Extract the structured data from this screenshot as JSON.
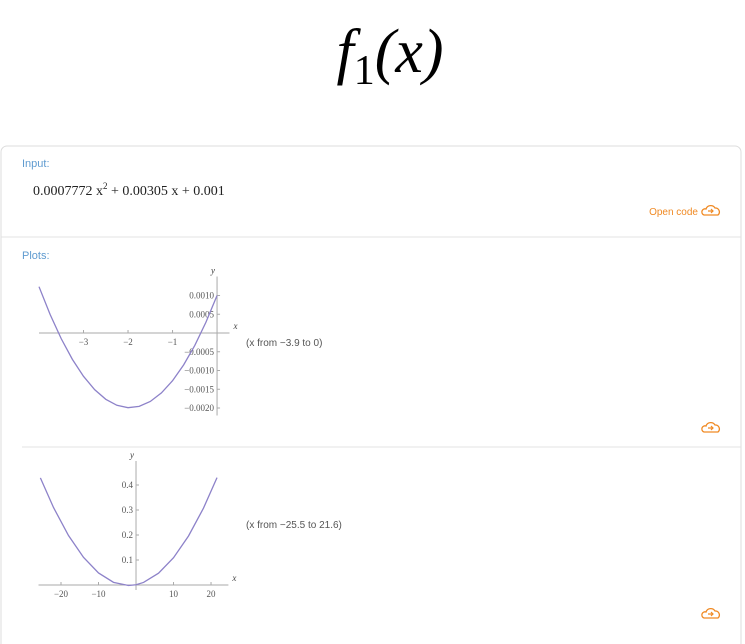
{
  "title": {
    "name": "f",
    "subscript": "1",
    "argument": "(x)"
  },
  "input": {
    "label": "Input:",
    "expression": {
      "quadratic_term": "0.0007772 x",
      "power": "2",
      "rest": " + 0.00305 x + 0.001"
    },
    "open_code": "Open code"
  },
  "plots": {
    "label": "Plots:",
    "items": [
      {
        "type": "line",
        "x_label": "x",
        "y_label": "y",
        "range_note": "(x from −3.9 to 0)",
        "color": "#8d82c9",
        "x": [
          -4,
          -3.75,
          -3.5,
          -3.25,
          -3,
          -2.75,
          -2.5,
          -2.25,
          -2,
          -1.75,
          -1.5,
          -1.25,
          -1,
          -0.75,
          -0.5,
          -0.25,
          0
        ],
        "values": [
          0.001235,
          0.000492,
          -0.000154,
          -0.000703,
          -0.001155,
          -0.00151,
          -0.001768,
          -0.001928,
          -0.001991,
          -0.001957,
          -0.001826,
          -0.001598,
          -0.001273,
          -0.00085,
          -0.000331,
          0.000286,
          0.001
        ],
        "xlim": [
          -4.0,
          0.1
        ],
        "ylim": [
          -0.0022,
          0.0014
        ],
        "xticks": [
          {
            "value": -3,
            "label": "−3"
          },
          {
            "value": -2,
            "label": "−2"
          },
          {
            "value": -1,
            "label": "−1"
          }
        ],
        "yticks": [
          {
            "value": 0.001,
            "label": "0.0010"
          },
          {
            "value": 0.0005,
            "label": "0.0005"
          },
          {
            "value": -0.0005,
            "label": "−0.0005"
          },
          {
            "value": -0.001,
            "label": "−0.0010"
          },
          {
            "value": -0.0015,
            "label": "−0.0015"
          },
          {
            "value": -0.002,
            "label": "−0.0020"
          }
        ]
      },
      {
        "type": "line",
        "x_label": "x",
        "y_label": "y",
        "range_note": "(x from −25.5 to 21.6)",
        "color": "#8d82c9",
        "x": [
          -25.5,
          -22,
          -18,
          -14,
          -10,
          -6,
          -2,
          0,
          2,
          6,
          10,
          14,
          18,
          21.6
        ],
        "values": [
          0.4286,
          0.31006,
          0.19791,
          0.11063,
          0.04822,
          0.01068,
          -0.00199,
          0.001,
          0.01021,
          0.04728,
          0.10922,
          0.19603,
          0.30771,
          0.4295
        ],
        "xlim": [
          -26,
          22.5
        ],
        "ylim": [
          -0.02,
          0.48
        ],
        "xticks": [
          {
            "value": -20,
            "label": "−20"
          },
          {
            "value": -10,
            "label": "−10"
          },
          10,
          20
        ],
        "yticks": [
          0.1,
          0.2,
          0.3,
          0.4
        ]
      }
    ]
  }
}
